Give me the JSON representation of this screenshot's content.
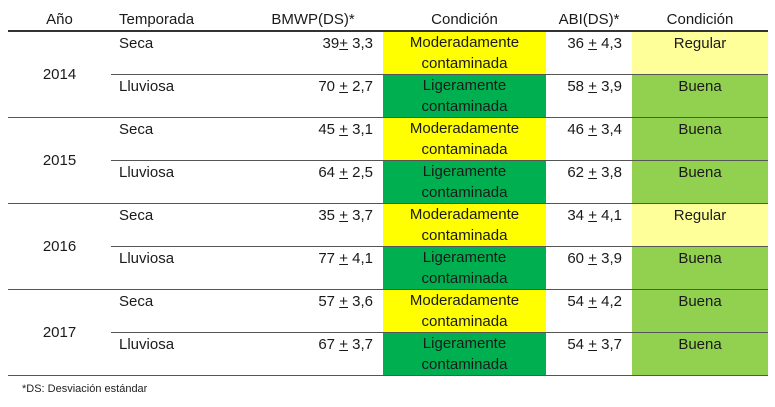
{
  "headers": {
    "year": "Año",
    "season": "Temporada",
    "bmwp": "BMWP(DS)*",
    "condition1": "Condición",
    "abi": "ABI(DS)*",
    "condition2": "Condición"
  },
  "rows": [
    {
      "year": "2014",
      "seca": {
        "season": "Seca",
        "bmwp_mean": "39",
        "bmwp_pm": "+",
        "bmwp_sd": "3,3",
        "bmwp_cond": "Moderadamente contaminada",
        "abi_mean": "36",
        "abi_pm": "+",
        "abi_sd": "4,3",
        "abi_cond": "Regular"
      },
      "lluviosa": {
        "season": "Lluviosa",
        "bmwp_mean": "70",
        "bmwp_pm": "+",
        "bmwp_sd": "2,7",
        "bmwp_cond": "Ligeramente contaminada",
        "abi_mean": "58",
        "abi_pm": "+",
        "abi_sd": "3,9",
        "abi_cond": "Buena"
      }
    },
    {
      "year": "2015",
      "seca": {
        "season": "Seca",
        "bmwp_mean": "45",
        "bmwp_pm": "+",
        "bmwp_sd": "3,1",
        "bmwp_cond": "Moderadamente contaminada",
        "abi_mean": "46",
        "abi_pm": "+",
        "abi_sd": "3,4",
        "abi_cond": "Buena"
      },
      "lluviosa": {
        "season": "Lluviosa",
        "bmwp_mean": "64",
        "bmwp_pm": "+",
        "bmwp_sd": "2,5",
        "bmwp_cond": "Ligeramente contaminada",
        "abi_mean": "62",
        "abi_pm": "+",
        "abi_sd": "3,8",
        "abi_cond": "Buena"
      }
    },
    {
      "year": "2016",
      "seca": {
        "season": "Seca",
        "bmwp_mean": "35",
        "bmwp_pm": "+",
        "bmwp_sd": "3,7",
        "bmwp_cond": "Moderadamente contaminada",
        "abi_mean": "34",
        "abi_pm": "+",
        "abi_sd": "4,1",
        "abi_cond": "Regular"
      },
      "lluviosa": {
        "season": "Lluviosa",
        "bmwp_mean": "77",
        "bmwp_pm": "+",
        "bmwp_sd": "4,1",
        "bmwp_cond": "Ligeramente contaminada",
        "abi_mean": "60",
        "abi_pm": "+",
        "abi_sd": "3,9",
        "abi_cond": "Buena"
      }
    },
    {
      "year": "2017",
      "seca": {
        "season": "Seca",
        "bmwp_mean": "57",
        "bmwp_pm": "+",
        "bmwp_sd": "3,6",
        "bmwp_cond": "Moderadamente contaminada",
        "abi_mean": "54",
        "abi_pm": "+",
        "abi_sd": "4,2",
        "abi_cond": "Buena"
      },
      "lluviosa": {
        "season": "Lluviosa",
        "bmwp_mean": "67",
        "bmwp_pm": "+",
        "bmwp_sd": "3,7",
        "bmwp_cond": "Ligeramente contaminada",
        "abi_mean": "54",
        "abi_pm": "+",
        "abi_sd": "3,7",
        "abi_cond": "Buena"
      }
    }
  ],
  "footnote": "*DS: Desviación estándar",
  "colors": {
    "moderadamente": "#ffff00",
    "ligeramente": "#00b050",
    "regular": "#ffff99",
    "buena": "#92d050"
  }
}
